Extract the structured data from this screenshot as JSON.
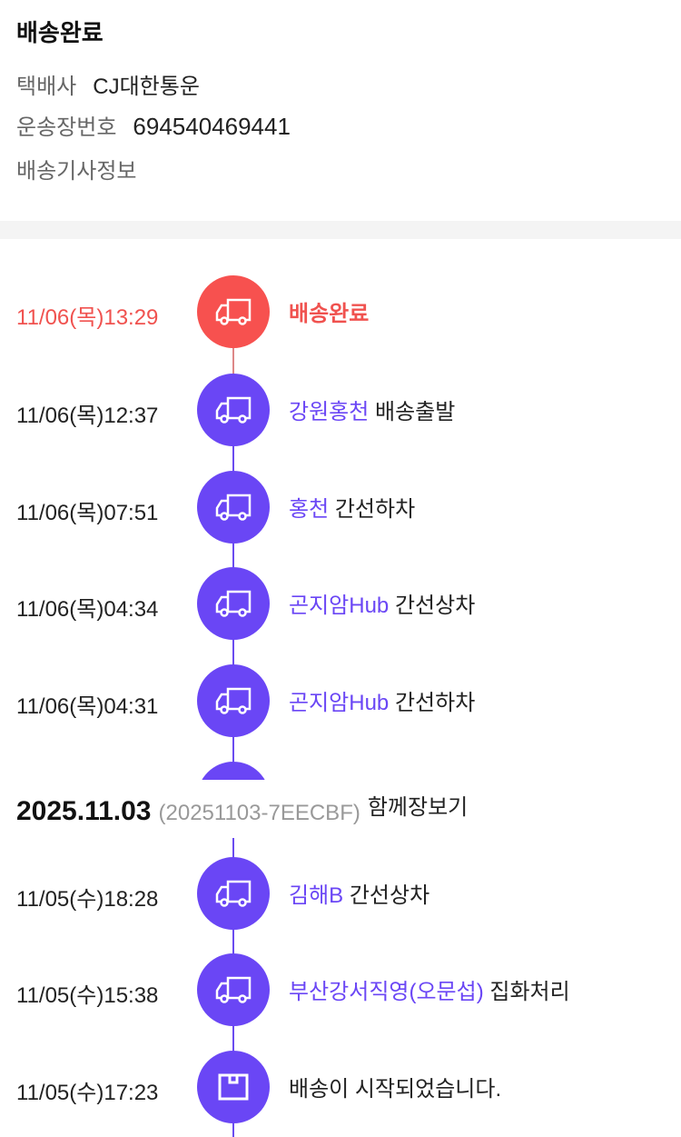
{
  "delivery": {
    "status_title": "배송완료",
    "courier_label": "택배사",
    "courier_value": "CJ대한통운",
    "tracking_label": "운송장번호",
    "tracking_value": "694540469441",
    "driver_info_label": "배송기사정보"
  },
  "colors": {
    "accent": "#6a46f5",
    "complete": "#f7514f"
  },
  "timeline": [
    {
      "time": "11/06(목)13:29",
      "location": "",
      "status": "배송완료",
      "icon": "truck-icon",
      "highlight": true
    },
    {
      "time": "11/06(목)12:37",
      "location": "강원홍천",
      "status": "배송출발",
      "icon": "truck-icon"
    },
    {
      "time": "11/06(목)07:51",
      "location": "홍천",
      "status": "간선하차",
      "icon": "truck-icon"
    },
    {
      "time": "11/06(목)04:34",
      "location": "곤지암Hub",
      "status": "간선상차",
      "icon": "truck-icon"
    },
    {
      "time": "11/06(목)04:31",
      "location": "곤지암Hub",
      "status": "간선하차",
      "icon": "truck-icon"
    }
  ],
  "order_group": {
    "date": "2025.11.03",
    "order_id": "(20251103-7EECBF)",
    "name": "함께장보기"
  },
  "timeline2": [
    {
      "time": "11/05(수)18:28",
      "location": "김해B",
      "status": "간선상차",
      "icon": "truck-icon"
    },
    {
      "time": "11/05(수)15:38",
      "location": "부산강서직영(오문섭)",
      "status": "집화처리",
      "icon": "truck-icon"
    },
    {
      "time": "11/05(수)17:23",
      "location": "",
      "status": "배송이 시작되었습니다.",
      "icon": "box-icon"
    }
  ]
}
